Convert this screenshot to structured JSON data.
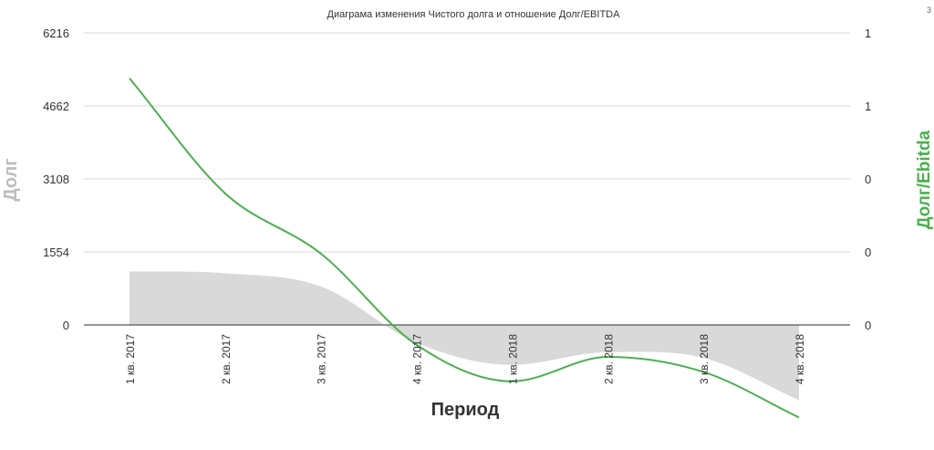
{
  "colors": {
    "line": "#4caf50",
    "area": "#d9d9d9",
    "grid": "#d8d8d8",
    "zero_line": "#555555",
    "left_axis_title": "#bdbdbd",
    "right_axis_title": "#4caf50",
    "x_axis_title": "#333333"
  },
  "chart_data": {
    "type": "area",
    "title": "Диаграма изменения Чистого долга и отношение Долг/EBITDA",
    "xlabel": "Период",
    "ylabel": "Долг",
    "y2label": "Долг/Ebitda",
    "categories": [
      "1 кв. 2017",
      "2 кв. 2017",
      "3 кв. 2017",
      "4 кв. 2017",
      "1 кв. 2018",
      "2 кв. 2018",
      "3 кв. 2018",
      "4 кв. 2018"
    ],
    "ylim": [
      0,
      6216
    ],
    "yticks": [
      "6216",
      "4662",
      "3108",
      "1554",
      "0"
    ],
    "y2ticks": [
      "1",
      "1",
      "0",
      "0",
      "0"
    ],
    "grid": true,
    "corner_marker": "3",
    "series": [
      {
        "name": "Долг",
        "type": "area",
        "axis": "left",
        "values": [
          1140,
          1100,
          820,
          -380,
          -850,
          -580,
          -700,
          -1600
        ]
      },
      {
        "name": "Долг/Ebitda",
        "type": "line",
        "axis": "right",
        "values": [
          5250,
          2800,
          1520,
          -420,
          -1200,
          -680,
          -1000,
          -1970
        ]
      }
    ]
  }
}
